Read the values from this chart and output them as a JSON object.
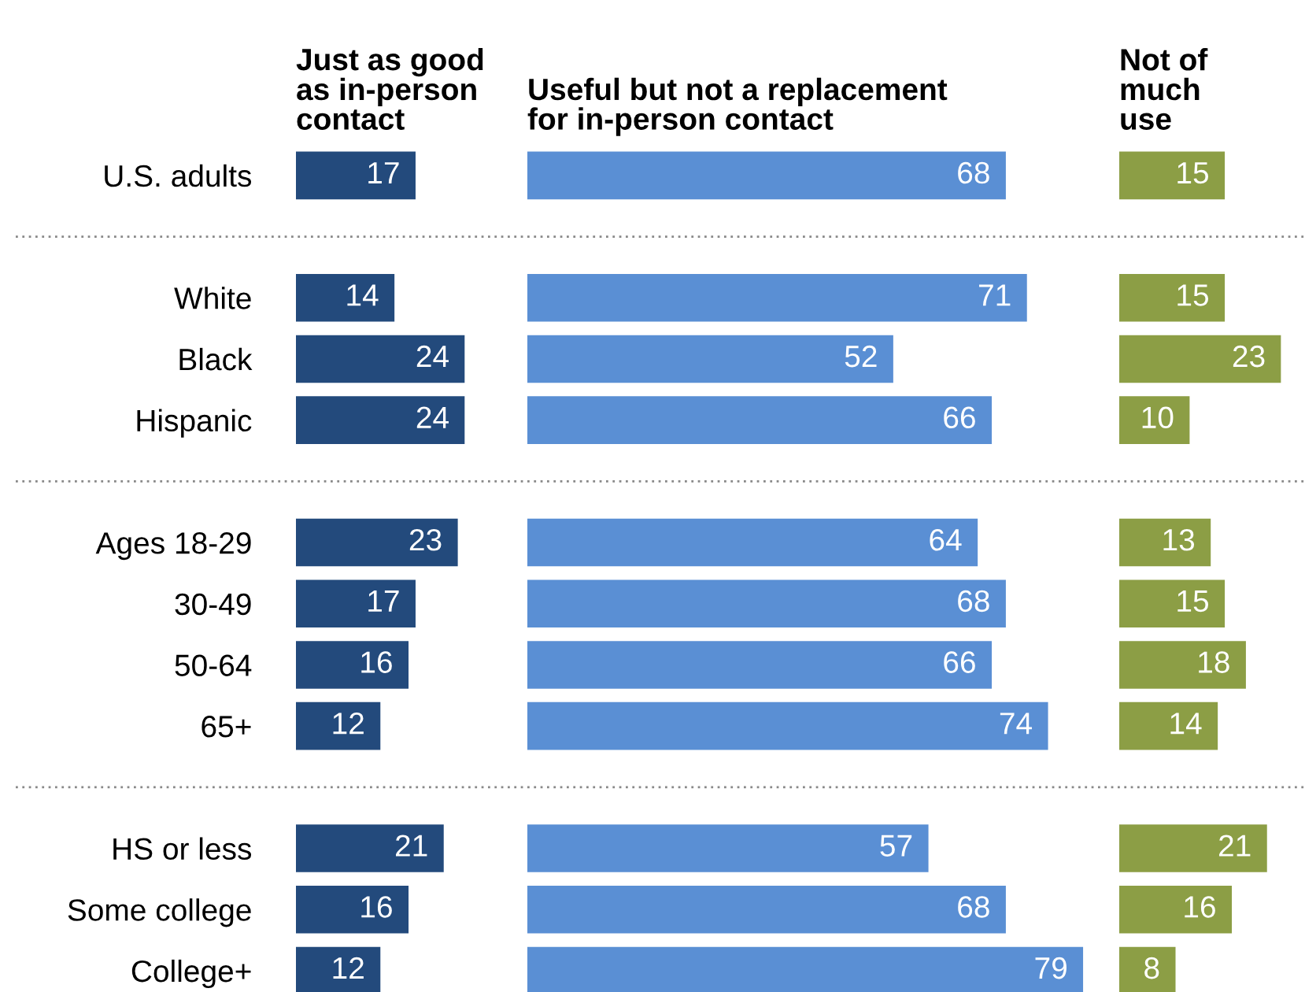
{
  "chart_data": [
    {
      "type": "bar",
      "orientation": "horizontal",
      "title": "Just as good\nas in-person\ncontact",
      "categories": [
        "U.S. adults",
        null,
        "White",
        "Black",
        "Hispanic",
        null,
        "Ages 18-29",
        "30-49",
        "50-64",
        "65+",
        null,
        "HS or less",
        "Some college",
        "College+"
      ],
      "values": [
        17,
        null,
        14,
        24,
        24,
        null,
        23,
        17,
        16,
        12,
        null,
        21,
        16,
        12
      ],
      "color": "#234a7c",
      "data_labels": true,
      "tick_labels": "y",
      "grid": false,
      "legend": false
    },
    {
      "type": "bar",
      "orientation": "horizontal",
      "title": "Useful but not a replacement\nfor in-person contact",
      "values": [
        68,
        null,
        71,
        52,
        66,
        null,
        64,
        68,
        66,
        74,
        null,
        57,
        68,
        79
      ],
      "color": "#5a8fd4",
      "data_labels": true,
      "tick_labels": false,
      "grid": false,
      "legend": false
    },
    {
      "type": "bar",
      "orientation": "horizontal",
      "title": "Not of\nmuch\nuse",
      "values": [
        15,
        null,
        15,
        23,
        10,
        null,
        13,
        15,
        18,
        14,
        null,
        21,
        16,
        8
      ],
      "color": "#8c9e45",
      "data_labels": true,
      "tick_labels": false,
      "grid": false,
      "legend": false
    }
  ]
}
